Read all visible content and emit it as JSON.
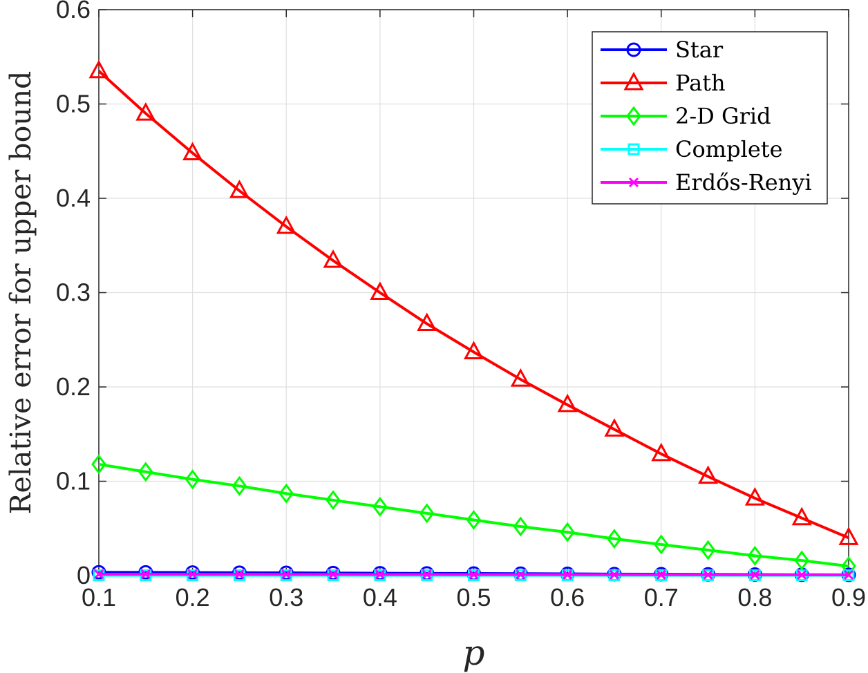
{
  "chart_data": {
    "type": "line",
    "title": "",
    "xlabel": "p",
    "ylabel": "Relative error for upper bound",
    "x": [
      0.1,
      0.15,
      0.2,
      0.25,
      0.3,
      0.35,
      0.4,
      0.45,
      0.5,
      0.55,
      0.6,
      0.65,
      0.7,
      0.75,
      0.8,
      0.85,
      0.9
    ],
    "xlim": [
      0.1,
      0.9
    ],
    "ylim": [
      0,
      0.6
    ],
    "xticks": [
      "0.1",
      "0.2",
      "0.3",
      "0.4",
      "0.5",
      "0.6",
      "0.7",
      "0.8",
      "0.9"
    ],
    "yticks": [
      "0",
      "0.1",
      "0.2",
      "0.3",
      "0.4",
      "0.5",
      "0.6"
    ],
    "grid": true,
    "legend_position": "top-right",
    "series": [
      {
        "name": "Star",
        "color": "#0000ff",
        "marker": "circle",
        "values": [
          0.0035,
          0.0034,
          0.0032,
          0.003,
          0.0029,
          0.0027,
          0.0025,
          0.0023,
          0.0022,
          0.002,
          0.0018,
          0.0016,
          0.0015,
          0.0013,
          0.0011,
          0.0009,
          0.0008
        ]
      },
      {
        "name": "Path",
        "color": "#ff0000",
        "marker": "triangle",
        "values": [
          0.535,
          0.49,
          0.448,
          0.408,
          0.37,
          0.334,
          0.3,
          0.267,
          0.237,
          0.208,
          0.181,
          0.155,
          0.129,
          0.105,
          0.082,
          0.061,
          0.04
        ]
      },
      {
        "name": "2-D Grid",
        "color": "#00ff00",
        "marker": "diamond",
        "values": [
          0.118,
          0.11,
          0.102,
          0.095,
          0.087,
          0.08,
          0.073,
          0.066,
          0.059,
          0.052,
          0.046,
          0.039,
          0.033,
          0.027,
          0.021,
          0.016,
          0.01
        ]
      },
      {
        "name": "Complete",
        "color": "#00ffff",
        "marker": "square",
        "values": [
          0.0003,
          0.0003,
          0.0003,
          0.0003,
          0.0003,
          0.0003,
          0.0003,
          0.0003,
          0.0003,
          0.0003,
          0.0003,
          0.0003,
          0.0003,
          0.0003,
          0.0003,
          0.0003,
          0.0003
        ]
      },
      {
        "name": "Erdős-Renyi",
        "color": "#ff00ff",
        "marker": "x",
        "values": [
          0.0015,
          0.0015,
          0.0014,
          0.0014,
          0.0013,
          0.0013,
          0.0012,
          0.0012,
          0.0011,
          0.0011,
          0.001,
          0.001,
          0.0009,
          0.0009,
          0.0008,
          0.0008,
          0.0007
        ]
      }
    ]
  }
}
